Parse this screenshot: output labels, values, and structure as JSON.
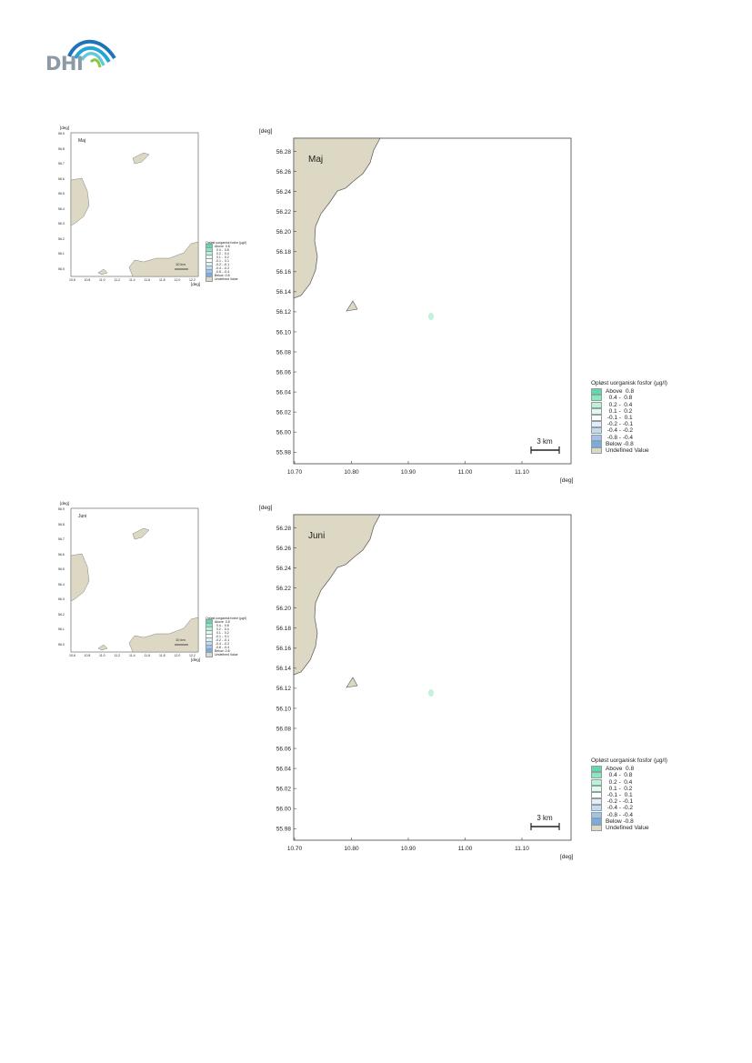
{
  "logo": {
    "text": "DHI",
    "colors": [
      "#1f74b8",
      "#26a3d9",
      "#66c8df",
      "#8fc63f"
    ]
  },
  "map": {
    "unit_y": "[deg]",
    "unit_x": "[deg]",
    "y_ticks": [
      "56.28",
      "56.26",
      "56.24",
      "56.22",
      "56.20",
      "56.18",
      "56.16",
      "56.14",
      "56.12",
      "56.10",
      "56.08",
      "56.06",
      "56.04",
      "56.02",
      "56.00",
      "55.98"
    ],
    "x_ticks": [
      "10.70",
      "10.80",
      "10.90",
      "11.00",
      "11.10"
    ],
    "scale_bar_label": "3 km",
    "land_color": "#dcd8c4"
  },
  "mini_map": {
    "unit_y": "[deg]",
    "unit_x": "[deg]",
    "y_ticks": [
      "56.9",
      "56.8",
      "56.7",
      "56.6",
      "56.5",
      "56.4",
      "56.3",
      "56.2",
      "56.1",
      "56.0"
    ],
    "x_ticks": [
      "10.6",
      "10.8",
      "11.0",
      "11.2",
      "11.4",
      "11.6",
      "11.8",
      "12.0",
      "12.2"
    ],
    "scale_bar_label": "10 km"
  },
  "legend": {
    "title": "Opløst uorganisk fosfor (µg/l)",
    "items": [
      {
        "label": "Above  0.8",
        "color": "#5fd9a6"
      },
      {
        "label": "  0.4 -  0.8",
        "color": "#8ee6bd"
      },
      {
        "label": "  0.2 -  0.4",
        "color": "#bdf0d6"
      },
      {
        "label": "  0.1 -  0.2",
        "color": "#e4f8ec"
      },
      {
        "label": " -0.1 -  0.1",
        "color": "#ffffff"
      },
      {
        "label": " -0.2 - -0.1",
        "color": "#e3ecf8"
      },
      {
        "label": " -0.4 - -0.2",
        "color": "#c6d9f2"
      },
      {
        "label": " -0.8 - -0.4",
        "color": "#a3c1ec"
      },
      {
        "label": "Below -0.8",
        "color": "#7ba8e6"
      },
      {
        "label": "Undefined Value",
        "color": "#dcd8c4"
      }
    ]
  },
  "panels": [
    {
      "month": "Maj"
    },
    {
      "month": "Juni"
    }
  ]
}
